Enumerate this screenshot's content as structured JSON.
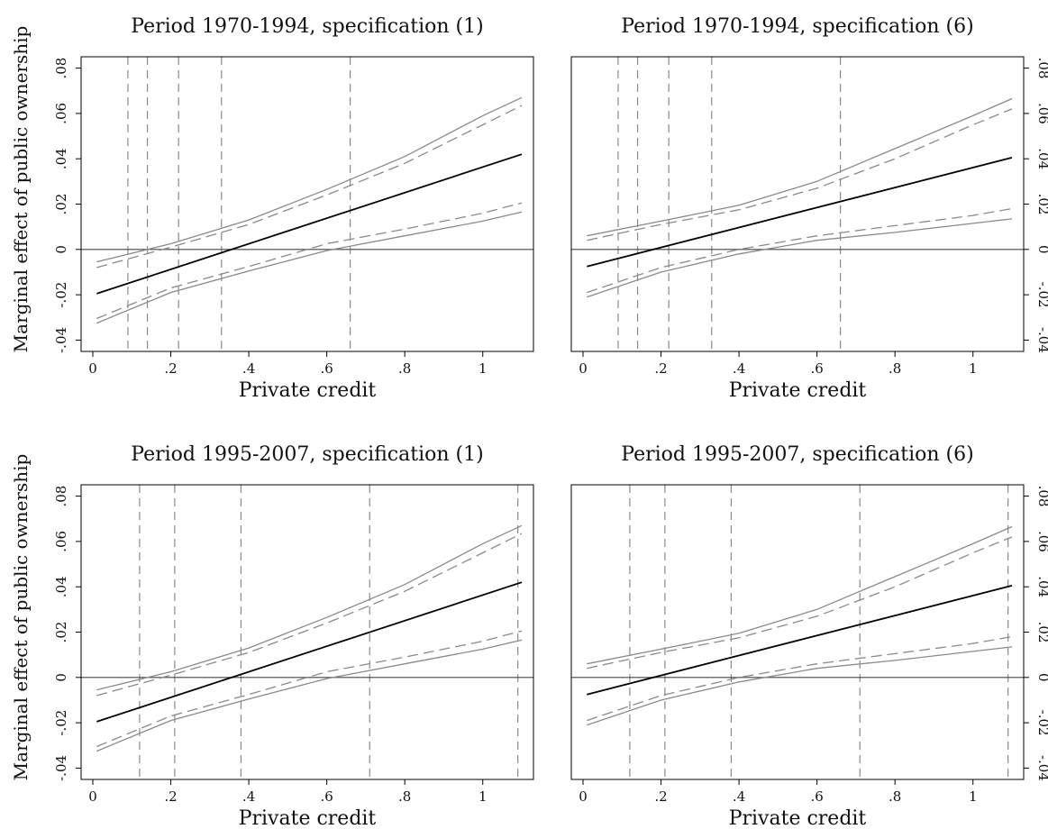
{
  "figure": {
    "ylabel": "Marginal effect of public ownership",
    "xlabel": "Private credit"
  },
  "colors": {
    "estimate": "#000000",
    "confidence_bands": "#8a8a8a",
    "zero_line": "#444444"
  },
  "chart_data": [
    {
      "type": "line",
      "title": "Period 1970-1994, specification (1)",
      "xlabel": "Private credit",
      "ylabel": "Marginal effect of public ownership",
      "xlim": [
        -0.03,
        1.13
      ],
      "ylim": [
        -0.045,
        0.085
      ],
      "x_ticks": [
        0,
        0.2,
        0.4,
        0.6,
        0.8,
        1
      ],
      "x_tick_labels": [
        "0",
        ".2",
        ".4",
        ".6",
        ".8",
        "1"
      ],
      "y_ticks": [
        -0.04,
        -0.02,
        0,
        0.02,
        0.04,
        0.06,
        0.08
      ],
      "y_tick_labels": [
        "-.04",
        "-.02",
        "0",
        ".02",
        ".04",
        ".06",
        ".08"
      ],
      "y_axis_side": "left",
      "percentile_lines": [
        0.09,
        0.14,
        0.22,
        0.33,
        0.66
      ],
      "series": [
        {
          "role": "estimate",
          "x": [
            0.01,
            1.1
          ],
          "values": [
            -0.0195,
            0.042
          ]
        },
        {
          "role": "ci95_upper",
          "x": [
            0.01,
            0.2,
            0.4,
            0.6,
            0.8,
            1.0,
            1.1
          ],
          "values": [
            -0.0055,
            0.0025,
            0.013,
            0.0265,
            0.041,
            0.059,
            0.067
          ]
        },
        {
          "role": "ci90_upper",
          "x": [
            0.01,
            0.2,
            0.4,
            0.6,
            0.8,
            1.0,
            1.1
          ],
          "values": [
            -0.008,
            0.001,
            0.011,
            0.024,
            0.038,
            0.055,
            0.0635
          ]
        },
        {
          "role": "ci90_lower",
          "x": [
            0.01,
            0.2,
            0.4,
            0.6,
            0.8,
            1.0,
            1.1
          ],
          "values": [
            -0.0305,
            -0.017,
            -0.0075,
            0.0025,
            0.009,
            0.016,
            0.0205
          ]
        },
        {
          "role": "ci95_lower",
          "x": [
            0.01,
            0.2,
            0.4,
            0.6,
            0.8,
            1.0,
            1.1
          ],
          "values": [
            -0.0325,
            -0.019,
            -0.0095,
            -0.0005,
            0.006,
            0.0125,
            0.0165
          ]
        }
      ]
    },
    {
      "type": "line",
      "title": "Period 1970-1994, specification (6)",
      "xlabel": "Private credit",
      "ylabel": "",
      "xlim": [
        -0.03,
        1.13
      ],
      "ylim": [
        -0.045,
        0.085
      ],
      "x_ticks": [
        0,
        0.2,
        0.4,
        0.6,
        0.8,
        1
      ],
      "x_tick_labels": [
        "0",
        ".2",
        ".4",
        ".6",
        ".8",
        "1"
      ],
      "y_ticks": [
        -0.04,
        -0.02,
        0,
        0.02,
        0.04,
        0.06,
        0.08
      ],
      "y_tick_labels": [
        "-.04",
        "-.02",
        "0",
        ".02",
        ".04",
        ".06",
        ".08"
      ],
      "y_axis_side": "right",
      "percentile_lines": [
        0.09,
        0.14,
        0.22,
        0.33,
        0.66
      ],
      "series": [
        {
          "role": "estimate",
          "x": [
            0.01,
            1.1
          ],
          "values": [
            -0.0075,
            0.0405
          ]
        },
        {
          "role": "ci95_upper",
          "x": [
            0.01,
            0.2,
            0.4,
            0.6,
            0.8,
            1.0,
            1.1
          ],
          "values": [
            0.006,
            0.0125,
            0.0195,
            0.03,
            0.0445,
            0.059,
            0.0665
          ]
        },
        {
          "role": "ci90_upper",
          "x": [
            0.01,
            0.2,
            0.4,
            0.6,
            0.8,
            1.0,
            1.1
          ],
          "values": [
            0.004,
            0.011,
            0.0175,
            0.027,
            0.04,
            0.055,
            0.062
          ]
        },
        {
          "role": "ci90_lower",
          "x": [
            0.01,
            0.2,
            0.4,
            0.6,
            0.8,
            1.0,
            1.1
          ],
          "values": [
            -0.019,
            -0.008,
            0.0,
            0.006,
            0.0105,
            0.015,
            0.018
          ]
        },
        {
          "role": "ci95_lower",
          "x": [
            0.01,
            0.2,
            0.4,
            0.6,
            0.8,
            1.0,
            1.1
          ],
          "values": [
            -0.021,
            -0.01,
            -0.002,
            0.004,
            0.0075,
            0.0115,
            0.0135
          ]
        }
      ]
    },
    {
      "type": "line",
      "title": "Period 1995-2007, specification (1)",
      "xlabel": "Private credit",
      "ylabel": "Marginal effect of public ownership",
      "xlim": [
        -0.03,
        1.13
      ],
      "ylim": [
        -0.045,
        0.085
      ],
      "x_ticks": [
        0,
        0.2,
        0.4,
        0.6,
        0.8,
        1
      ],
      "x_tick_labels": [
        "0",
        ".2",
        ".4",
        ".6",
        ".8",
        "1"
      ],
      "y_ticks": [
        -0.04,
        -0.02,
        0,
        0.02,
        0.04,
        0.06,
        0.08
      ],
      "y_tick_labels": [
        "-.04",
        "-.02",
        "0",
        ".02",
        ".04",
        ".06",
        ".08"
      ],
      "y_axis_side": "left",
      "percentile_lines": [
        0.12,
        0.21,
        0.38,
        0.71,
        1.09
      ],
      "series": [
        {
          "role": "estimate",
          "x": [
            0.01,
            1.1
          ],
          "values": [
            -0.0195,
            0.042
          ]
        },
        {
          "role": "ci95_upper",
          "x": [
            0.01,
            0.2,
            0.4,
            0.6,
            0.8,
            1.0,
            1.1
          ],
          "values": [
            -0.0055,
            0.0025,
            0.013,
            0.0265,
            0.041,
            0.059,
            0.067
          ]
        },
        {
          "role": "ci90_upper",
          "x": [
            0.01,
            0.2,
            0.4,
            0.6,
            0.8,
            1.0,
            1.1
          ],
          "values": [
            -0.008,
            0.001,
            0.011,
            0.024,
            0.038,
            0.055,
            0.0635
          ]
        },
        {
          "role": "ci90_lower",
          "x": [
            0.01,
            0.2,
            0.4,
            0.6,
            0.8,
            1.0,
            1.1
          ],
          "values": [
            -0.0305,
            -0.017,
            -0.0075,
            0.0025,
            0.009,
            0.016,
            0.0205
          ]
        },
        {
          "role": "ci95_lower",
          "x": [
            0.01,
            0.2,
            0.4,
            0.6,
            0.8,
            1.0,
            1.1
          ],
          "values": [
            -0.0325,
            -0.019,
            -0.0095,
            -0.0005,
            0.006,
            0.0125,
            0.0165
          ]
        }
      ]
    },
    {
      "type": "line",
      "title": "Period 1995-2007, specification (6)",
      "xlabel": "Private credit",
      "ylabel": "",
      "xlim": [
        -0.03,
        1.13
      ],
      "ylim": [
        -0.045,
        0.085
      ],
      "x_ticks": [
        0,
        0.2,
        0.4,
        0.6,
        0.8,
        1
      ],
      "x_tick_labels": [
        "0",
        ".2",
        ".4",
        ".6",
        ".8",
        "1"
      ],
      "y_ticks": [
        -0.04,
        -0.02,
        0,
        0.02,
        0.04,
        0.06,
        0.08
      ],
      "y_tick_labels": [
        "-.04",
        "-.02",
        "0",
        ".02",
        ".04",
        ".06",
        ".08"
      ],
      "y_axis_side": "right",
      "percentile_lines": [
        0.12,
        0.21,
        0.38,
        0.71,
        1.09
      ],
      "series": [
        {
          "role": "estimate",
          "x": [
            0.01,
            1.1
          ],
          "values": [
            -0.0075,
            0.0405
          ]
        },
        {
          "role": "ci95_upper",
          "x": [
            0.01,
            0.2,
            0.4,
            0.6,
            0.8,
            1.0,
            1.1
          ],
          "values": [
            0.006,
            0.0125,
            0.0195,
            0.03,
            0.0445,
            0.059,
            0.0665
          ]
        },
        {
          "role": "ci90_upper",
          "x": [
            0.01,
            0.2,
            0.4,
            0.6,
            0.8,
            1.0,
            1.1
          ],
          "values": [
            0.004,
            0.011,
            0.0175,
            0.027,
            0.04,
            0.055,
            0.062
          ]
        },
        {
          "role": "ci90_lower",
          "x": [
            0.01,
            0.2,
            0.4,
            0.6,
            0.8,
            1.0,
            1.1
          ],
          "values": [
            -0.019,
            -0.008,
            0.0,
            0.006,
            0.0105,
            0.015,
            0.018
          ]
        },
        {
          "role": "ci95_lower",
          "x": [
            0.01,
            0.2,
            0.4,
            0.6,
            0.8,
            1.0,
            1.1
          ],
          "values": [
            -0.021,
            -0.01,
            -0.002,
            0.004,
            0.0075,
            0.0115,
            0.0135
          ]
        }
      ]
    }
  ]
}
